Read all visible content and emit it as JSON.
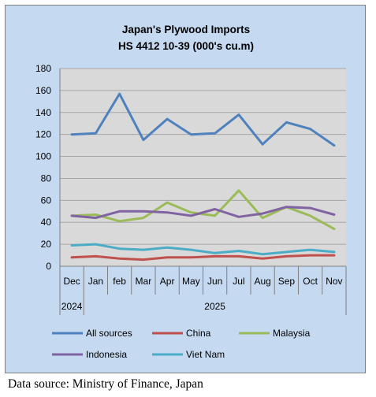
{
  "chart_data": {
    "type": "line",
    "title": "Japan's Plywood Imports",
    "subtitle": "HS 4412 10-39  (000's cu.m)",
    "categories": [
      "Dec",
      "Jan",
      "feb",
      "Mar",
      "Apr",
      "May",
      "Jun",
      "Jul",
      "Aug",
      "Sep",
      "Oct",
      "Nov"
    ],
    "year_labels": [
      "2024",
      "2025"
    ],
    "yticks": [
      "0",
      "20",
      "40",
      "60",
      "80",
      "100",
      "120",
      "140",
      "160",
      "180"
    ],
    "ylim": [
      0,
      180
    ],
    "grid": true,
    "legend_position": "bottom",
    "series": [
      {
        "name": "All sources",
        "color": "#4f81bd",
        "values": [
          120,
          121,
          157,
          115,
          134,
          120,
          121,
          138,
          111,
          131,
          125,
          110
        ]
      },
      {
        "name": "China",
        "color": "#c0504d",
        "values": [
          8,
          9,
          7,
          6,
          8,
          8,
          9,
          9,
          7,
          9,
          10,
          10
        ]
      },
      {
        "name": "Malaysia",
        "color": "#9bbb59",
        "values": [
          46,
          47,
          41,
          44,
          58,
          49,
          46,
          69,
          44,
          54,
          46,
          34
        ]
      },
      {
        "name": "Indonesia",
        "color": "#8064a2",
        "values": [
          46,
          44,
          50,
          50,
          49,
          46,
          52,
          45,
          48,
          54,
          53,
          47
        ]
      },
      {
        "name": "Viet Nam",
        "color": "#4bacc6",
        "values": [
          19,
          20,
          16,
          15,
          17,
          15,
          12,
          14,
          11,
          13,
          15,
          13
        ]
      }
    ]
  },
  "source_note": "Data source: Ministry of Finance, Japan"
}
